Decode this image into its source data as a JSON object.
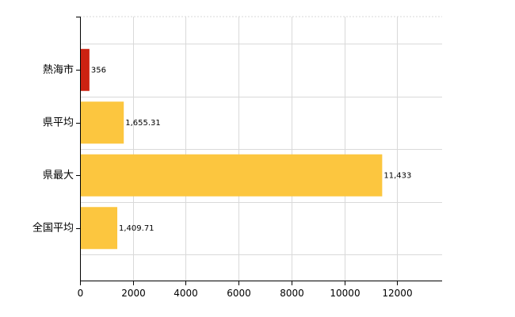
{
  "chart_data": {
    "type": "bar",
    "orientation": "horizontal",
    "categories": [
      "熱海市",
      "県平均",
      "県最大",
      "全国平均"
    ],
    "values": [
      356,
      1655.31,
      11433,
      1409.71
    ],
    "data_labels": [
      "356",
      "1,655.31",
      "11,433",
      "1,409.71"
    ],
    "bar_colors": [
      "#cc2211",
      "#fcc63f",
      "#fcc63f",
      "#fcc63f"
    ],
    "xlim": [
      0,
      13700
    ],
    "x_ticks": [
      0,
      2000,
      4000,
      6000,
      8000,
      10000,
      12000
    ],
    "x_tick_labels": [
      "0",
      "2000",
      "4000",
      "6000",
      "8000",
      "10000",
      "12000"
    ],
    "grid": true,
    "title": "",
    "xlabel": "",
    "ylabel": ""
  }
}
